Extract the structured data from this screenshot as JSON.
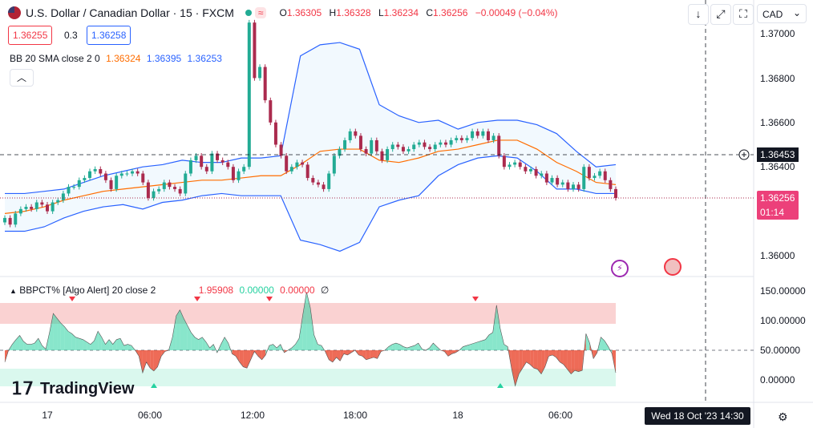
{
  "header": {
    "symbol_title": "U.S. Dollar / Canadian Dollar · 15 · FXCM",
    "change_badge": "≈",
    "ohlc": {
      "o_label": "O",
      "o": "1.36305",
      "h_label": "H",
      "h": "1.36328",
      "l_label": "L",
      "l": "1.36234",
      "c_label": "C",
      "c": "1.36256",
      "change": "−0.00049 (−0.04%)"
    },
    "sell_price": "1.36255",
    "spread": "0.3",
    "buy_price": "1.36258"
  },
  "toolbar": {
    "currency": "CAD",
    "currency_caret": "⌄"
  },
  "indicators": {
    "bb_label": "BB 20 SMA close 2 0",
    "bb_basis": "1.36324",
    "bb_upper": "1.36395",
    "bb_lower": "1.36253",
    "bbpct_label": "BBPCT% [Algo Alert] 20 close 2",
    "bbpct_v1": "1.95908",
    "bbpct_v2": "0.00000",
    "bbpct_v3": "0.00000",
    "bbpct_v4": "∅"
  },
  "price_axis": {
    "ticks": [
      "1.37000",
      "1.36800",
      "1.36600",
      "1.36400",
      "1.36000"
    ],
    "crosshair_price": "1.36453",
    "last_price": "1.36256",
    "countdown": "01:14"
  },
  "osc_axis": {
    "ticks": [
      "150.00000",
      "100.00000",
      "50.00000",
      "0.00000"
    ]
  },
  "time_axis": {
    "ticks": [
      "17",
      "06:00",
      "12:00",
      "18:00",
      "18",
      "06:00"
    ],
    "crosshair_time": "Wed 18 Oct '23   14:30"
  },
  "branding": {
    "logo_text": "TradingView",
    "logo_mark": "𝟣𝟩"
  },
  "colors": {
    "up": "#22ab94",
    "down": "#ab2b4e",
    "bb_band": "#2962ff",
    "bb_basis": "#ff6d00",
    "osc_up": "#26d1a0",
    "osc_down": "#e8391f",
    "zone_top": "#f7b4b4",
    "zone_bottom": "#b6f1de"
  },
  "chart_data": [
    {
      "type": "candlestick",
      "title": "U.S. Dollar / Canadian Dollar · 15 · FXCM",
      "x_ticks": [
        "17",
        "06:00",
        "12:00",
        "18:00",
        "18",
        "06:00"
      ],
      "ylim": [
        1.3595,
        1.3712
      ],
      "y_ticks": [
        1.37,
        1.368,
        1.366,
        1.364,
        1.36
      ],
      "close": [
        1.3617,
        1.3614,
        1.3619,
        1.3621,
        1.3622,
        1.3621,
        1.3624,
        1.3623,
        1.362,
        1.3624,
        1.3625,
        1.3628,
        1.3631,
        1.3631,
        1.3634,
        1.3635,
        1.3638,
        1.3639,
        1.3637,
        1.3634,
        1.363,
        1.3636,
        1.3637,
        1.3637,
        1.3638,
        1.3637,
        1.3633,
        1.3626,
        1.3629,
        1.363,
        1.3633,
        1.3631,
        1.363,
        1.3628,
        1.3637,
        1.3643,
        1.3645,
        1.364,
        1.3638,
        1.3646,
        1.3643,
        1.3642,
        1.364,
        1.3634,
        1.3638,
        1.364,
        1.3705,
        1.368,
        1.3685,
        1.367,
        1.366,
        1.365,
        1.3645,
        1.3638,
        1.364,
        1.3642,
        1.3641,
        1.3635,
        1.3633,
        1.3632,
        1.363,
        1.3637,
        1.3645,
        1.3648,
        1.3652,
        1.3656,
        1.3654,
        1.3648,
        1.3646,
        1.3652,
        1.3647,
        1.3643,
        1.3648,
        1.365,
        1.3649,
        1.3647,
        1.3648,
        1.365,
        1.3651,
        1.3649,
        1.3648,
        1.365,
        1.3651,
        1.365,
        1.3652,
        1.3653,
        1.3652,
        1.3653,
        1.3656,
        1.3654,
        1.3656,
        1.3652,
        1.3654,
        1.3645,
        1.364,
        1.3641,
        1.3642,
        1.364,
        1.3638,
        1.3639,
        1.3636,
        1.3637,
        1.3633,
        1.3635,
        1.3632,
        1.3633,
        1.363,
        1.3632,
        1.363,
        1.364,
        1.3635,
        1.3636,
        1.3638,
        1.3634,
        1.363,
        1.3626
      ],
      "upper_band": [
        1.3628,
        1.3628,
        1.3629,
        1.363,
        1.3633,
        1.3636,
        1.3638,
        1.364,
        1.3641,
        1.3643,
        1.3642,
        1.3642,
        1.3644,
        1.3644,
        1.3645,
        1.369,
        1.3695,
        1.3696,
        1.3693,
        1.3668,
        1.3663,
        1.366,
        1.3661,
        1.3657,
        1.366,
        1.3661,
        1.3661,
        1.3659,
        1.3655,
        1.3647,
        1.364,
        1.3641
      ],
      "basis": [
        1.3619,
        1.362,
        1.3622,
        1.3625,
        1.3627,
        1.3629,
        1.363,
        1.3631,
        1.3632,
        1.3633,
        1.3634,
        1.3634,
        1.3635,
        1.3636,
        1.3636,
        1.3641,
        1.3647,
        1.3648,
        1.3648,
        1.3643,
        1.3642,
        1.3644,
        1.3647,
        1.3648,
        1.365,
        1.3652,
        1.3652,
        1.3648,
        1.3642,
        1.3638,
        1.3633,
        1.3632
      ],
      "lower_band": [
        1.3611,
        1.3611,
        1.3613,
        1.3617,
        1.362,
        1.3622,
        1.3623,
        1.3621,
        1.3624,
        1.3625,
        1.3627,
        1.3628,
        1.3627,
        1.3627,
        1.3627,
        1.3607,
        1.3605,
        1.3602,
        1.3606,
        1.3622,
        1.3625,
        1.3627,
        1.3636,
        1.3641,
        1.3644,
        1.3645,
        1.3644,
        1.3638,
        1.363,
        1.363,
        1.3628,
        1.3628
      ]
    },
    {
      "type": "area",
      "title": "BBPCT% [Algo Alert] 20 close 2",
      "ylim": [
        -20,
        160
      ],
      "y_ticks": [
        150,
        100,
        50,
        0
      ],
      "values": [
        30,
        50,
        60,
        68,
        75,
        65,
        60,
        60,
        62,
        70,
        58,
        52,
        80,
        112,
        104,
        96,
        90,
        82,
        78,
        72,
        70,
        68,
        64,
        60,
        66,
        82,
        72,
        60,
        68,
        60,
        68,
        70,
        58,
        60,
        58,
        50,
        40,
        12,
        30,
        20,
        15,
        22,
        40,
        48,
        50,
        72,
        108,
        118,
        104,
        92,
        80,
        72,
        68,
        72,
        64,
        54,
        60,
        46,
        60,
        72,
        62,
        44,
        40,
        30,
        22,
        20,
        34,
        48,
        40,
        34,
        42,
        58,
        60,
        54,
        60,
        46,
        50,
        54,
        60,
        70,
        110,
        148,
        122,
        76,
        60,
        58,
        48,
        34,
        30,
        38,
        32,
        44,
        42,
        46,
        50,
        42,
        40,
        34,
        36,
        38,
        36,
        48,
        50,
        56,
        60,
        62,
        60,
        56,
        54,
        56,
        58,
        62,
        52,
        50,
        54,
        62,
        56,
        50,
        48,
        40,
        44,
        46,
        50,
        56,
        58,
        60,
        62,
        64,
        66,
        68,
        76,
        80,
        126,
        86,
        60,
        56,
        20,
        -10,
        10,
        20,
        30,
        26,
        20,
        18,
        10,
        22,
        40,
        42,
        38,
        30,
        26,
        18,
        10,
        16,
        14,
        16,
        78,
        62,
        36,
        46,
        72,
        66,
        56,
        44,
        12
      ]
    }
  ]
}
